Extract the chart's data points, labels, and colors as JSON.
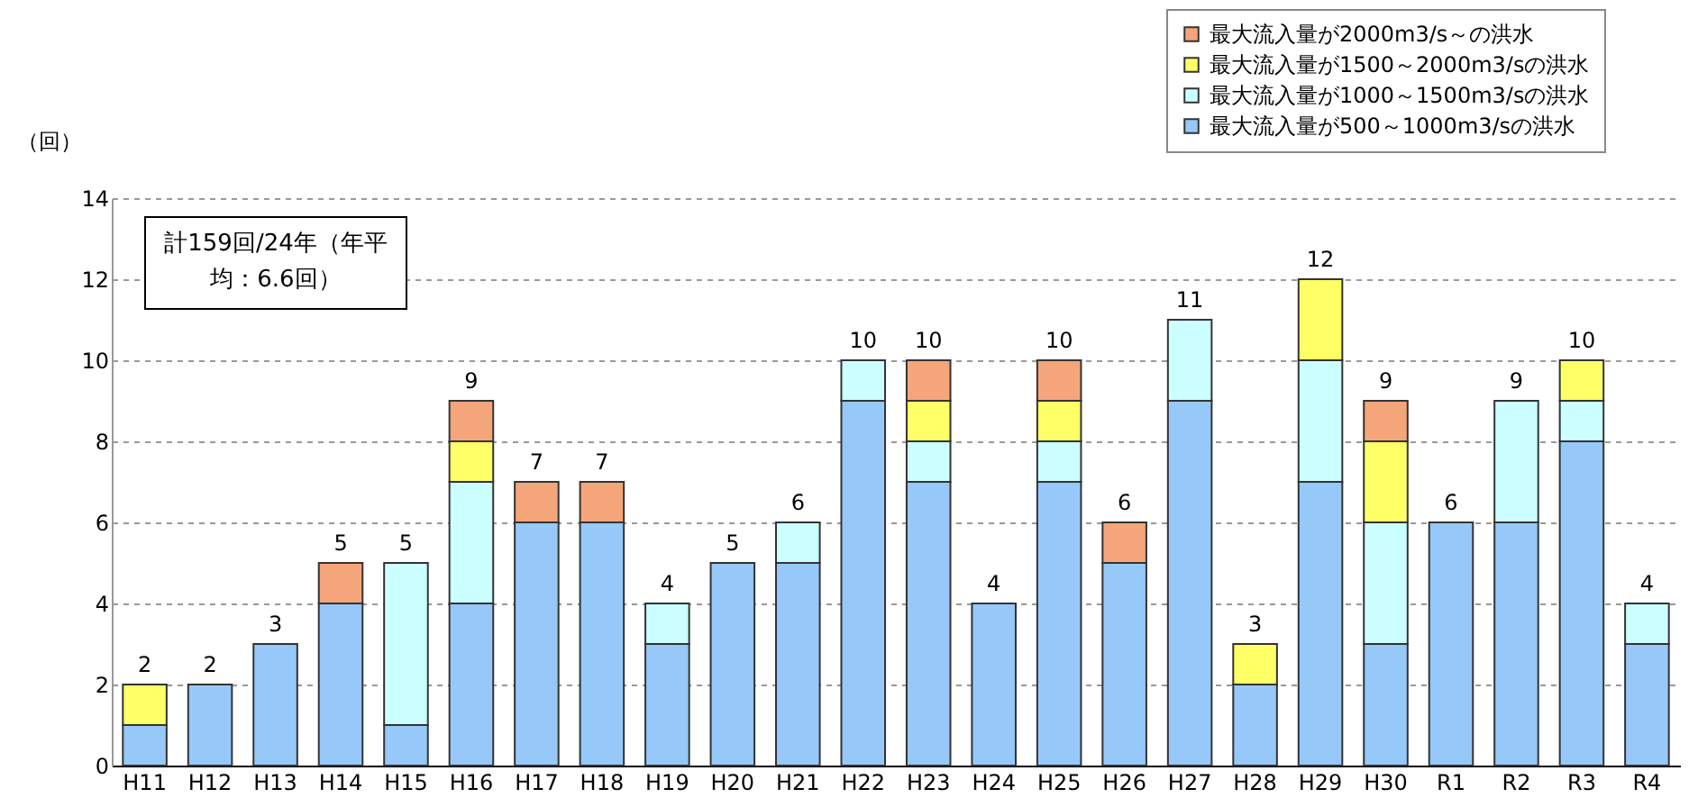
{
  "chart_data": {
    "type": "bar",
    "stacked": true,
    "ylabel": "（回）",
    "categories": [
      "H11",
      "H12",
      "H13",
      "H14",
      "H15",
      "H16",
      "H17",
      "H18",
      "H19",
      "H20",
      "H21",
      "H22",
      "H23",
      "H24",
      "H25",
      "H26",
      "H27",
      "H28",
      "H29",
      "H30",
      "R1",
      "R2",
      "R3",
      "R4"
    ],
    "series": [
      {
        "name": "最大流入量が500～1000m3/sの洪水",
        "color": "#96c8fa",
        "values": [
          1,
          2,
          3,
          4,
          1,
          4,
          6,
          6,
          3,
          5,
          5,
          9,
          7,
          4,
          7,
          5,
          9,
          2,
          7,
          3,
          6,
          6,
          8,
          3
        ]
      },
      {
        "name": "最大流入量が1000～1500m3/sの洪水",
        "color": "#ccffff",
        "values": [
          null,
          null,
          null,
          null,
          4,
          3,
          null,
          null,
          1,
          null,
          1,
          1,
          1,
          null,
          1,
          null,
          2,
          null,
          3,
          3,
          null,
          3,
          1,
          1
        ]
      },
      {
        "name": "最大流入量が1500～2000m3/sの洪水",
        "color": "#ffff66",
        "values": [
          1,
          null,
          null,
          null,
          null,
          1,
          null,
          null,
          null,
          null,
          null,
          null,
          1,
          null,
          1,
          null,
          null,
          1,
          2,
          2,
          null,
          null,
          1,
          null
        ]
      },
      {
        "name": "最大流入量が2000m3/s～の洪水",
        "color": "#f4a67a",
        "values": [
          null,
          null,
          null,
          1,
          null,
          1,
          1,
          1,
          null,
          null,
          null,
          null,
          1,
          null,
          1,
          1,
          null,
          null,
          null,
          1,
          null,
          null,
          null,
          null
        ]
      }
    ],
    "totals": [
      "2",
      "2",
      "3",
      "5",
      "5",
      "9",
      "7",
      "7",
      "4",
      "5",
      "6",
      "10",
      "10",
      "4",
      "10",
      "6",
      "11",
      "3",
      "12",
      "9",
      "6",
      "9",
      "10",
      "4"
    ],
    "ylim": [
      0,
      14
    ],
    "yticks": [
      0,
      2,
      4,
      6,
      8,
      10,
      12,
      14
    ],
    "grid": "y",
    "legend": "top right",
    "annotations": [
      "計159回/24年（年平均：6.6回）"
    ]
  }
}
